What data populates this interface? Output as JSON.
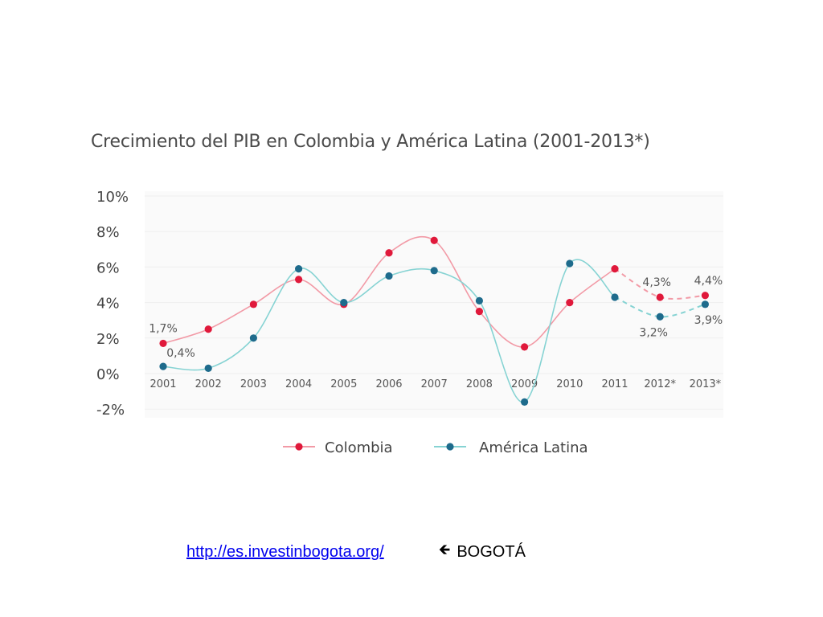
{
  "chart_data": {
    "type": "line",
    "title": "Crecimiento del PIB en Colombia y América Latina (2001-2013*)",
    "categories": [
      "2001",
      "2002",
      "2003",
      "2004",
      "2005",
      "2006",
      "2007",
      "2008",
      "2009",
      "2010",
      "2011",
      "2012*",
      "2013*"
    ],
    "ylim": [
      -2,
      10
    ],
    "yticks": [
      10,
      8,
      6,
      4,
      2,
      0,
      -2
    ],
    "ytick_labels": [
      "10%",
      "8%",
      "6%",
      "4%",
      "2%",
      "0%",
      "-2%"
    ],
    "projected_from_index": 10,
    "legend_position": "bottom",
    "series": [
      {
        "name": "Colombia",
        "color": "#e0193b",
        "line_color": "#f29aa6",
        "values": [
          1.7,
          2.5,
          3.9,
          5.3,
          3.9,
          6.8,
          7.5,
          3.5,
          1.5,
          4.0,
          5.9,
          4.3,
          4.4
        ],
        "labels": [
          {
            "index": 0,
            "text": "1,7%"
          },
          {
            "index": 11,
            "text": "4,3%"
          },
          {
            "index": 12,
            "text": "4,4%"
          }
        ]
      },
      {
        "name": "América Latina",
        "color": "#1e6b8c",
        "line_color": "#86d3d3",
        "values": [
          0.4,
          0.3,
          2.0,
          5.9,
          4.0,
          5.5,
          5.8,
          4.1,
          -1.6,
          6.2,
          4.3,
          3.2,
          3.9
        ],
        "labels": [
          {
            "index": 0,
            "text": "0,4%"
          },
          {
            "index": 11,
            "text": "3,2%"
          },
          {
            "index": 12,
            "text": "3,9%"
          }
        ]
      }
    ]
  },
  "footer": {
    "link_text": "http://es.investinbogota.org/",
    "arrow": "🡸",
    "location": "BOGOTÁ"
  }
}
